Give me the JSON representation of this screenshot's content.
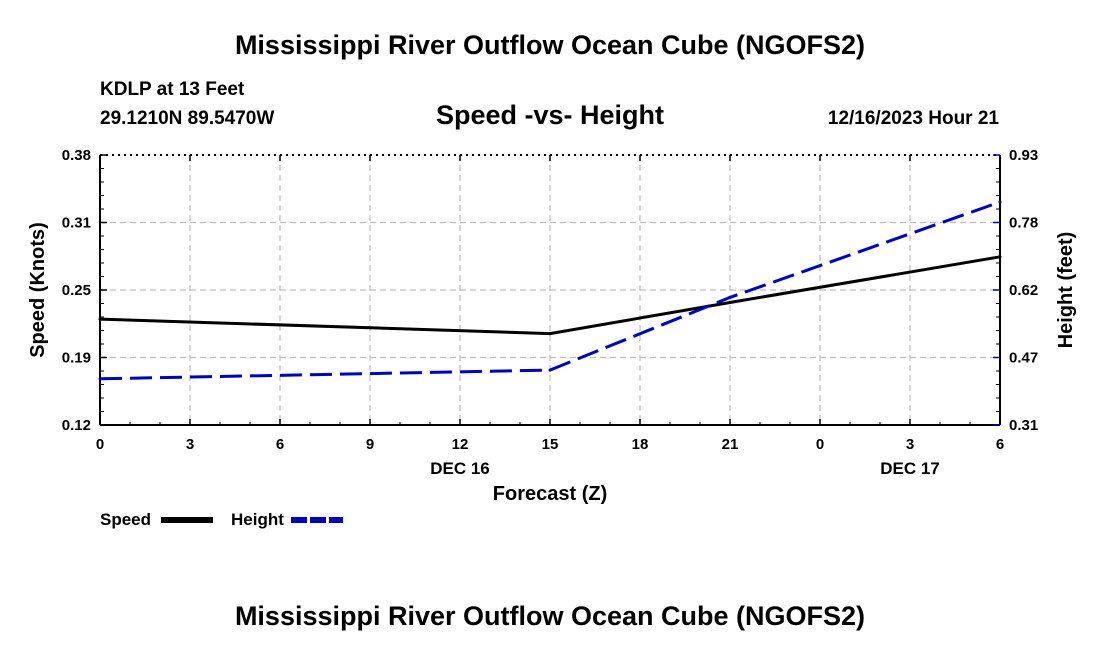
{
  "page": {
    "title": "Mississippi River Outflow Ocean Cube (NGOFS2)",
    "title_bottom": "Mississippi River Outflow Ocean Cube (NGOFS2)",
    "station": "KDLP at 13 Feet",
    "coords": "29.1210N  89.5470W",
    "subtitle": "Speed -vs- Height",
    "datetime": "12/16/2023 Hour 21"
  },
  "chart_data": {
    "type": "line",
    "x": [
      0,
      15,
      21,
      30
    ],
    "x_tick_labels": [
      "0",
      "3",
      "6",
      "9",
      "12",
      "15",
      "18",
      "21",
      "0",
      "3",
      "6"
    ],
    "date_labels": [
      {
        "label": "DEC 16",
        "tick_index": 4
      },
      {
        "label": "DEC 17",
        "tick_index": 9
      }
    ],
    "xlabel": "Forecast (Z)",
    "xlim": [
      0,
      30
    ],
    "ylabel": "Speed (Knots)",
    "ylim": [
      0.12,
      0.38
    ],
    "y_tick_labels": [
      "0.12",
      "0.19",
      "0.25",
      "0.31",
      "0.38"
    ],
    "y2label": "Height (feet)",
    "y2lim": [
      0.31,
      0.93
    ],
    "y2_tick_labels": [
      "0.31",
      "0.47",
      "0.62",
      "0.78",
      "0.93"
    ],
    "grid": true,
    "series": [
      {
        "name": "Speed",
        "axis": "left",
        "color": "#000000",
        "dash": "solid",
        "values": [
          0.222,
          0.208,
          0.238,
          0.282
        ]
      },
      {
        "name": "Height",
        "axis": "right",
        "color": "#0000cc",
        "dash": "dashed",
        "values": [
          0.416,
          0.436,
          0.603,
          0.822
        ]
      }
    ],
    "legend_position": "bottom-left"
  }
}
